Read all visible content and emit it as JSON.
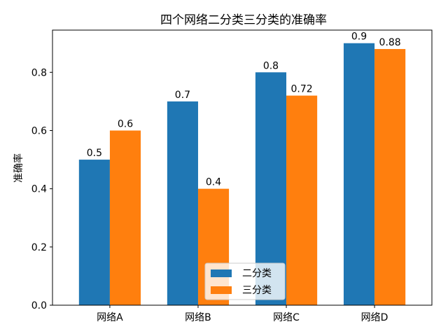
{
  "chart_data": {
    "type": "bar",
    "title": "四个网络二分类三分类的准确率",
    "xlabel": "",
    "ylabel": "准确率",
    "categories": [
      "网络A",
      "网络B",
      "网络C",
      "网络D"
    ],
    "series": [
      {
        "name": "二分类",
        "values": [
          0.5,
          0.7,
          0.8,
          0.9
        ],
        "labels": [
          "0.5",
          "0.7",
          "0.8",
          "0.9"
        ],
        "color": "#1f77b4"
      },
      {
        "name": "三分类",
        "values": [
          0.6,
          0.4,
          0.72,
          0.88
        ],
        "labels": [
          "0.6",
          "0.4",
          "0.72",
          "0.88"
        ],
        "color": "#ff7f0e"
      }
    ],
    "ylim": [
      0,
      0.945
    ],
    "yticks": [
      0.0,
      0.2,
      0.4,
      0.6,
      0.8
    ],
    "ytick_labels": [
      "0.0",
      "0.2",
      "0.4",
      "0.6",
      "0.8"
    ],
    "grid": false,
    "legend_position": "bottom-center"
  }
}
